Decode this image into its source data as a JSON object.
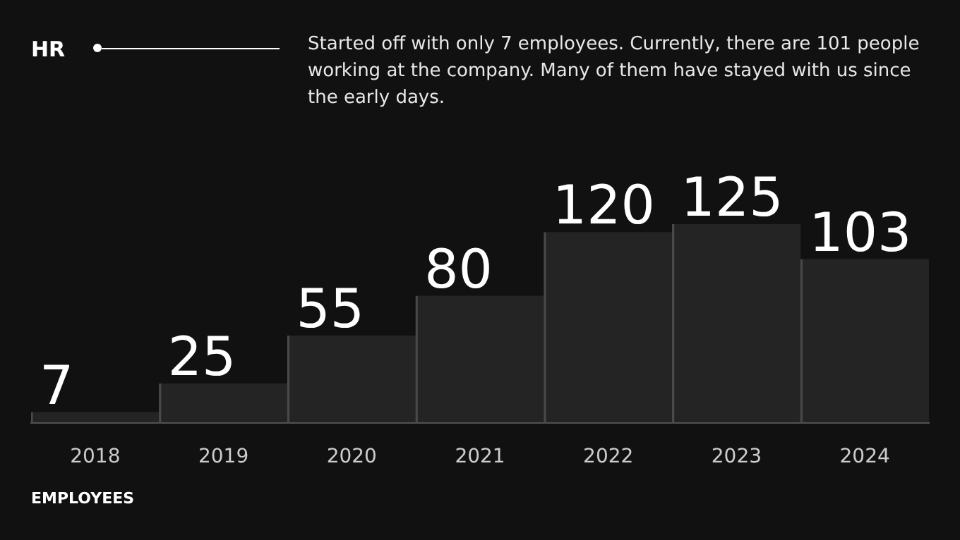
{
  "chart_data": {
    "type": "bar",
    "title": "HR",
    "subtitle": "Started off with only 7 employees. Currently, there are 101 people working at the company. Many of them have stayed with us since the early days.",
    "xlabel": "EMPLOYEES",
    "categories": [
      "2018",
      "2019",
      "2020",
      "2021",
      "2022",
      "2023",
      "2024"
    ],
    "series": [
      {
        "color": "#4a4a4a",
        "values": [
          7,
          25,
          55,
          80,
          120,
          125,
          103
        ]
      }
    ],
    "data_labels": true
  }
}
